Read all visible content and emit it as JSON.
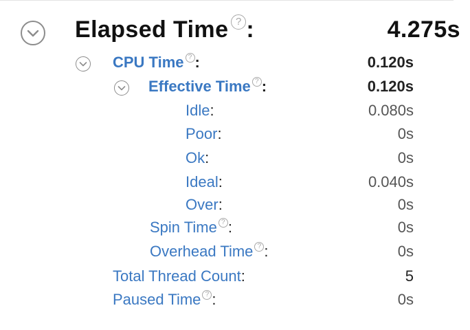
{
  "summary": {
    "elapsed": {
      "label": "Elapsed Time",
      "value": "4.275s"
    },
    "cpu": {
      "label": "CPU Time",
      "value": "0.120s"
    },
    "effective": {
      "label": "Effective Time",
      "value": "0.120s"
    },
    "breakdown": [
      {
        "label": "Idle",
        "value": "0.080s"
      },
      {
        "label": "Poor",
        "value": "0s"
      },
      {
        "label": "Ok",
        "value": "0s"
      },
      {
        "label": "Ideal",
        "value": "0.040s"
      },
      {
        "label": "Over",
        "value": "0s"
      }
    ],
    "spin": {
      "label": "Spin Time",
      "value": "0s"
    },
    "overhead": {
      "label": "Overhead Time",
      "value": "0s"
    },
    "threads": {
      "label": "Total Thread Count",
      "value": "5"
    },
    "paused": {
      "label": "Paused Time",
      "value": "0s"
    }
  },
  "help_glyph": "?",
  "colon": ":",
  "icons": {
    "expand": "chevron-down-circle-icon",
    "help": "question-mark-icon"
  },
  "colors": {
    "link": "#3a78c2",
    "title": "#111111",
    "value_bold": "#222222",
    "value_normal": "#555555",
    "icon_gray": "#8c8c8c"
  }
}
